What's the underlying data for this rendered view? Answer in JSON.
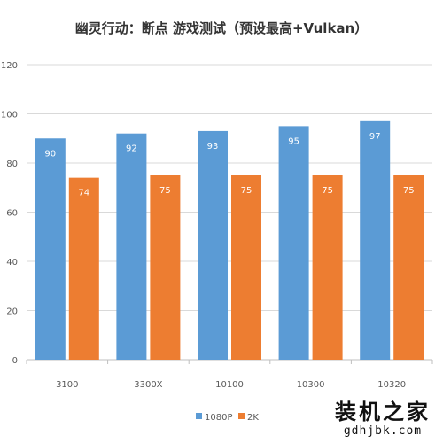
{
  "chart_data": {
    "type": "bar",
    "title": "幽灵行动：断点 游戏测试（预设最高+Vulkan）",
    "categories": [
      "3100",
      "3300X",
      "10100",
      "10300",
      "10320"
    ],
    "series": [
      {
        "name": "1080P",
        "values": [
          90,
          92,
          93,
          95,
          97
        ],
        "color": "#5b9bd5"
      },
      {
        "name": "2K",
        "values": [
          74,
          75,
          75,
          75,
          75
        ],
        "color": "#ed7d31"
      }
    ],
    "yticks": [
      "0",
      "20",
      "40",
      "60",
      "80",
      "100",
      "120"
    ],
    "ylim": [
      0,
      120
    ],
    "grid": true,
    "legend_position": "bottom"
  },
  "watermark": {
    "text": "装机之家",
    "url": "gdhjbk.com"
  }
}
